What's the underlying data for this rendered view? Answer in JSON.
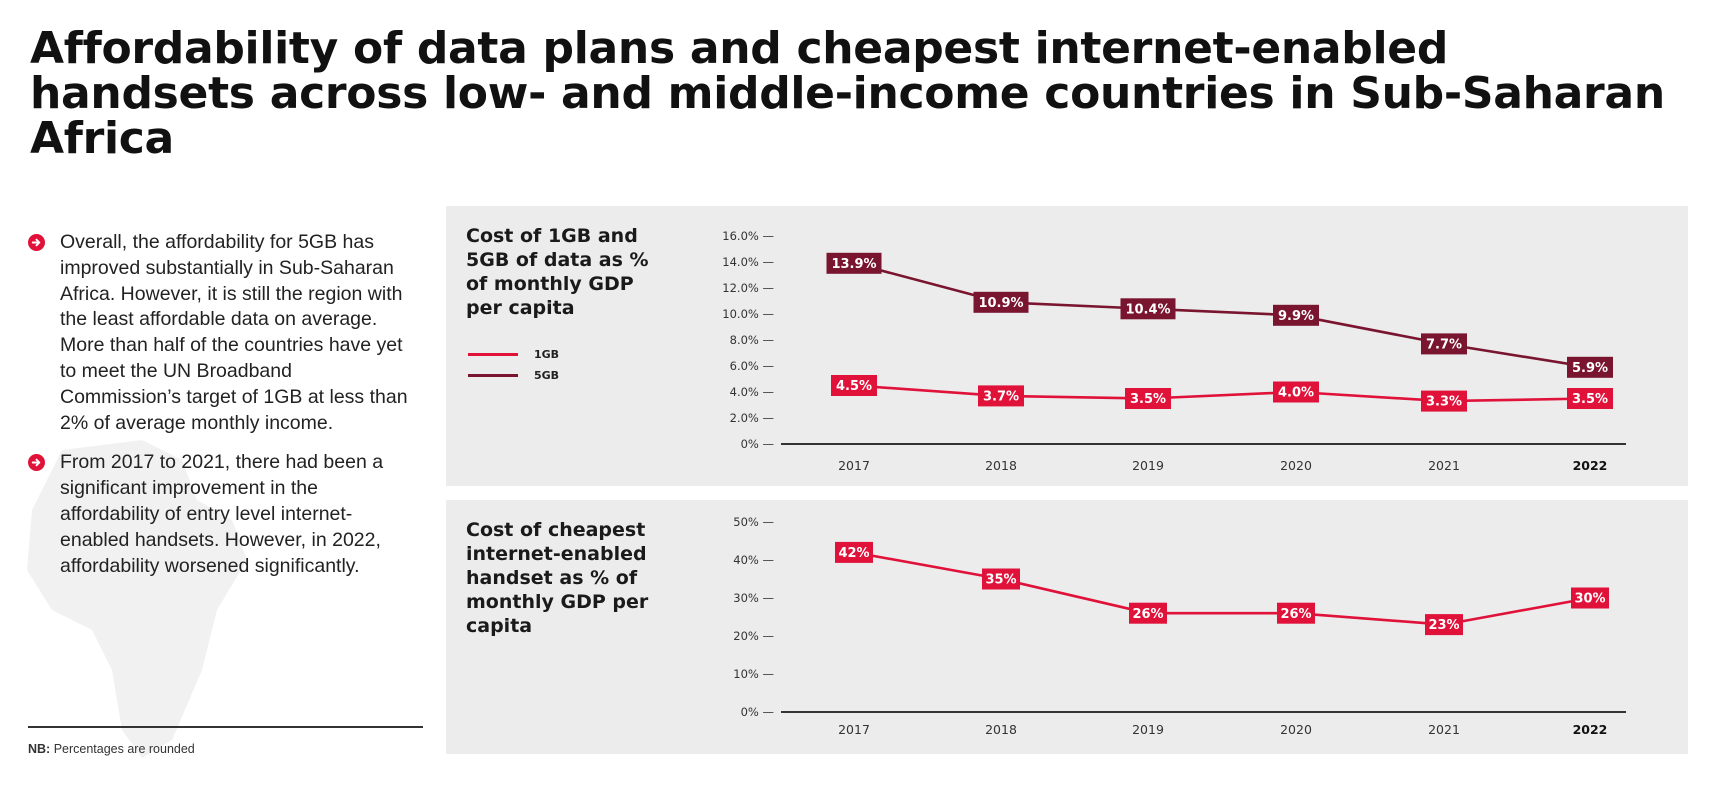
{
  "page": {
    "title": "Affordability of data plans and cheapest internet-enabled handsets across low- and middle-income countries in Sub-Saharan Africa"
  },
  "bullets": [
    {
      "icon": "arrow-right-circle-icon",
      "text": "Overall, the affordability for 5GB has improved substantially in Sub-Saharan Africa. However, it is still the region with the least affordable data on average. More than half of the countries have yet to meet the UN Broadband Commission’s target of 1GB at less than 2% of average monthly income."
    },
    {
      "icon": "arrow-right-circle-icon",
      "text": "From 2017 to 2021, there had been a significant improvement in the affordability of entry level internet-enabled handsets. However, in 2022, affordability worsened significantly."
    }
  ],
  "note": {
    "prefix": "NB:",
    "text": " Percentages are rounded"
  },
  "colors": {
    "accent": "#e0123a",
    "series_1gb": "#e0123a",
    "series_5gb": "#7a1530",
    "panel_bg": "#ececec",
    "bullet_icon": "#e0123a"
  },
  "chart_data": [
    {
      "type": "line",
      "title": "Cost of 1GB and 5GB of data as % of monthly GDP per capita",
      "categories": [
        "2017",
        "2018",
        "2019",
        "2020",
        "2021",
        "2022"
      ],
      "highlight_category": "2022",
      "series": [
        {
          "name": "1GB",
          "color": "#e0123a",
          "values": [
            4.5,
            3.7,
            3.5,
            4.0,
            3.3,
            3.5
          ],
          "labels": [
            "4.5%",
            "3.7%",
            "3.5%",
            "4.0%",
            "3.3%",
            "3.5%"
          ]
        },
        {
          "name": "5GB",
          "color": "#7a1530",
          "values": [
            13.9,
            10.9,
            10.4,
            9.9,
            7.7,
            5.9
          ],
          "labels": [
            "13.9%",
            "10.9%",
            "10.4%",
            "9.9%",
            "7.7%",
            "5.9%"
          ]
        }
      ],
      "yticks": [
        0,
        2,
        4,
        6,
        8,
        10,
        12,
        14,
        16
      ],
      "ytick_labels": [
        "0% —",
        "2.0% —",
        "4.0% —",
        "6.0% —",
        "8.0% —",
        "10.0% —",
        "12.0% —",
        "14.0% —",
        "16.0% —"
      ],
      "ylim": [
        0,
        16
      ],
      "legend": "left",
      "grid": false,
      "xlabel": "",
      "ylabel": ""
    },
    {
      "type": "line",
      "title": "Cost of cheapest internet-enabled handset as % of monthly GDP per capita",
      "categories": [
        "2017",
        "2018",
        "2019",
        "2020",
        "2021",
        "2022"
      ],
      "highlight_category": "2022",
      "series": [
        {
          "name": "Handset",
          "color": "#e0123a",
          "values": [
            42,
            35,
            26,
            26,
            23,
            30
          ],
          "labels": [
            "42%",
            "35%",
            "26%",
            "26%",
            "23%",
            "30%"
          ]
        }
      ],
      "yticks": [
        0,
        10,
        20,
        30,
        40,
        50
      ],
      "ytick_labels": [
        "0% —",
        "10% —",
        "20% —",
        "30% —",
        "40% —",
        "50% —"
      ],
      "ylim": [
        0,
        50
      ],
      "grid": false,
      "xlabel": "",
      "ylabel": ""
    }
  ]
}
